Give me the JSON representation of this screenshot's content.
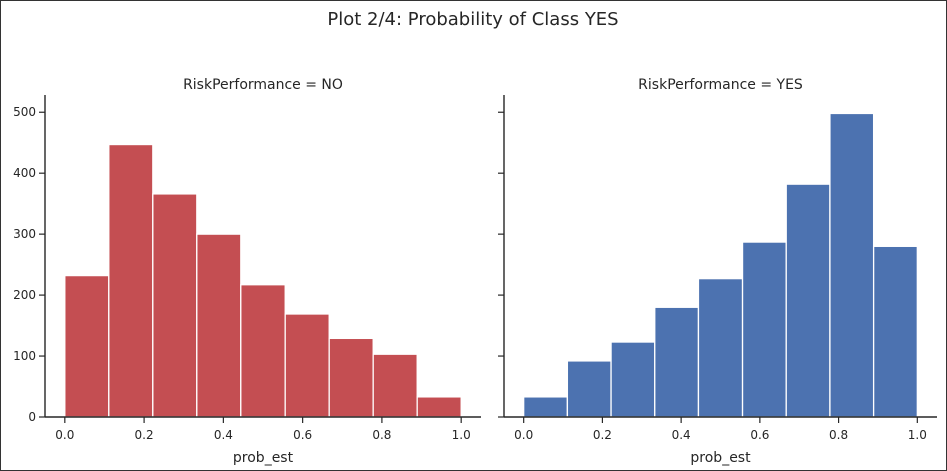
{
  "figure": {
    "title": "Plot 2/4: Probability of Class YES"
  },
  "chart_data": [
    {
      "type": "bar",
      "title": "RiskPerformance = NO",
      "xlabel": "prob_est",
      "ylabel": "",
      "xlim": [
        -0.05,
        1.05
      ],
      "ylim": [
        0,
        525
      ],
      "xticks": [
        0.0,
        0.2,
        0.4,
        0.6,
        0.8,
        1.0
      ],
      "xtick_labels": [
        "0.0",
        "0.2",
        "0.4",
        "0.6",
        "0.8",
        "1.0"
      ],
      "yticks": [
        0,
        100,
        200,
        300,
        400,
        500
      ],
      "ytick_labels": [
        "0",
        "100",
        "200",
        "300",
        "400",
        "500"
      ],
      "bin_edges": [
        0.0,
        0.111,
        0.222,
        0.333,
        0.444,
        0.556,
        0.667,
        0.778,
        0.889,
        1.0
      ],
      "values": [
        232,
        447,
        366,
        300,
        217,
        169,
        129,
        103,
        33
      ],
      "color": "#c44e52"
    },
    {
      "type": "bar",
      "title": "RiskPerformance = YES",
      "xlabel": "prob_est",
      "ylabel": "",
      "xlim": [
        -0.05,
        1.05
      ],
      "ylim": [
        0,
        525
      ],
      "xticks": [
        0.0,
        0.2,
        0.4,
        0.6,
        0.8,
        1.0
      ],
      "xtick_labels": [
        "0.0",
        "0.2",
        "0.4",
        "0.6",
        "0.8",
        "1.0"
      ],
      "yticks": [
        0,
        100,
        200,
        300,
        400,
        500
      ],
      "ytick_labels": [],
      "bin_edges": [
        0.0,
        0.111,
        0.222,
        0.333,
        0.444,
        0.556,
        0.667,
        0.778,
        0.889,
        1.0
      ],
      "values": [
        33,
        92,
        123,
        180,
        227,
        287,
        382,
        498,
        280
      ],
      "color": "#4c72b0"
    }
  ]
}
